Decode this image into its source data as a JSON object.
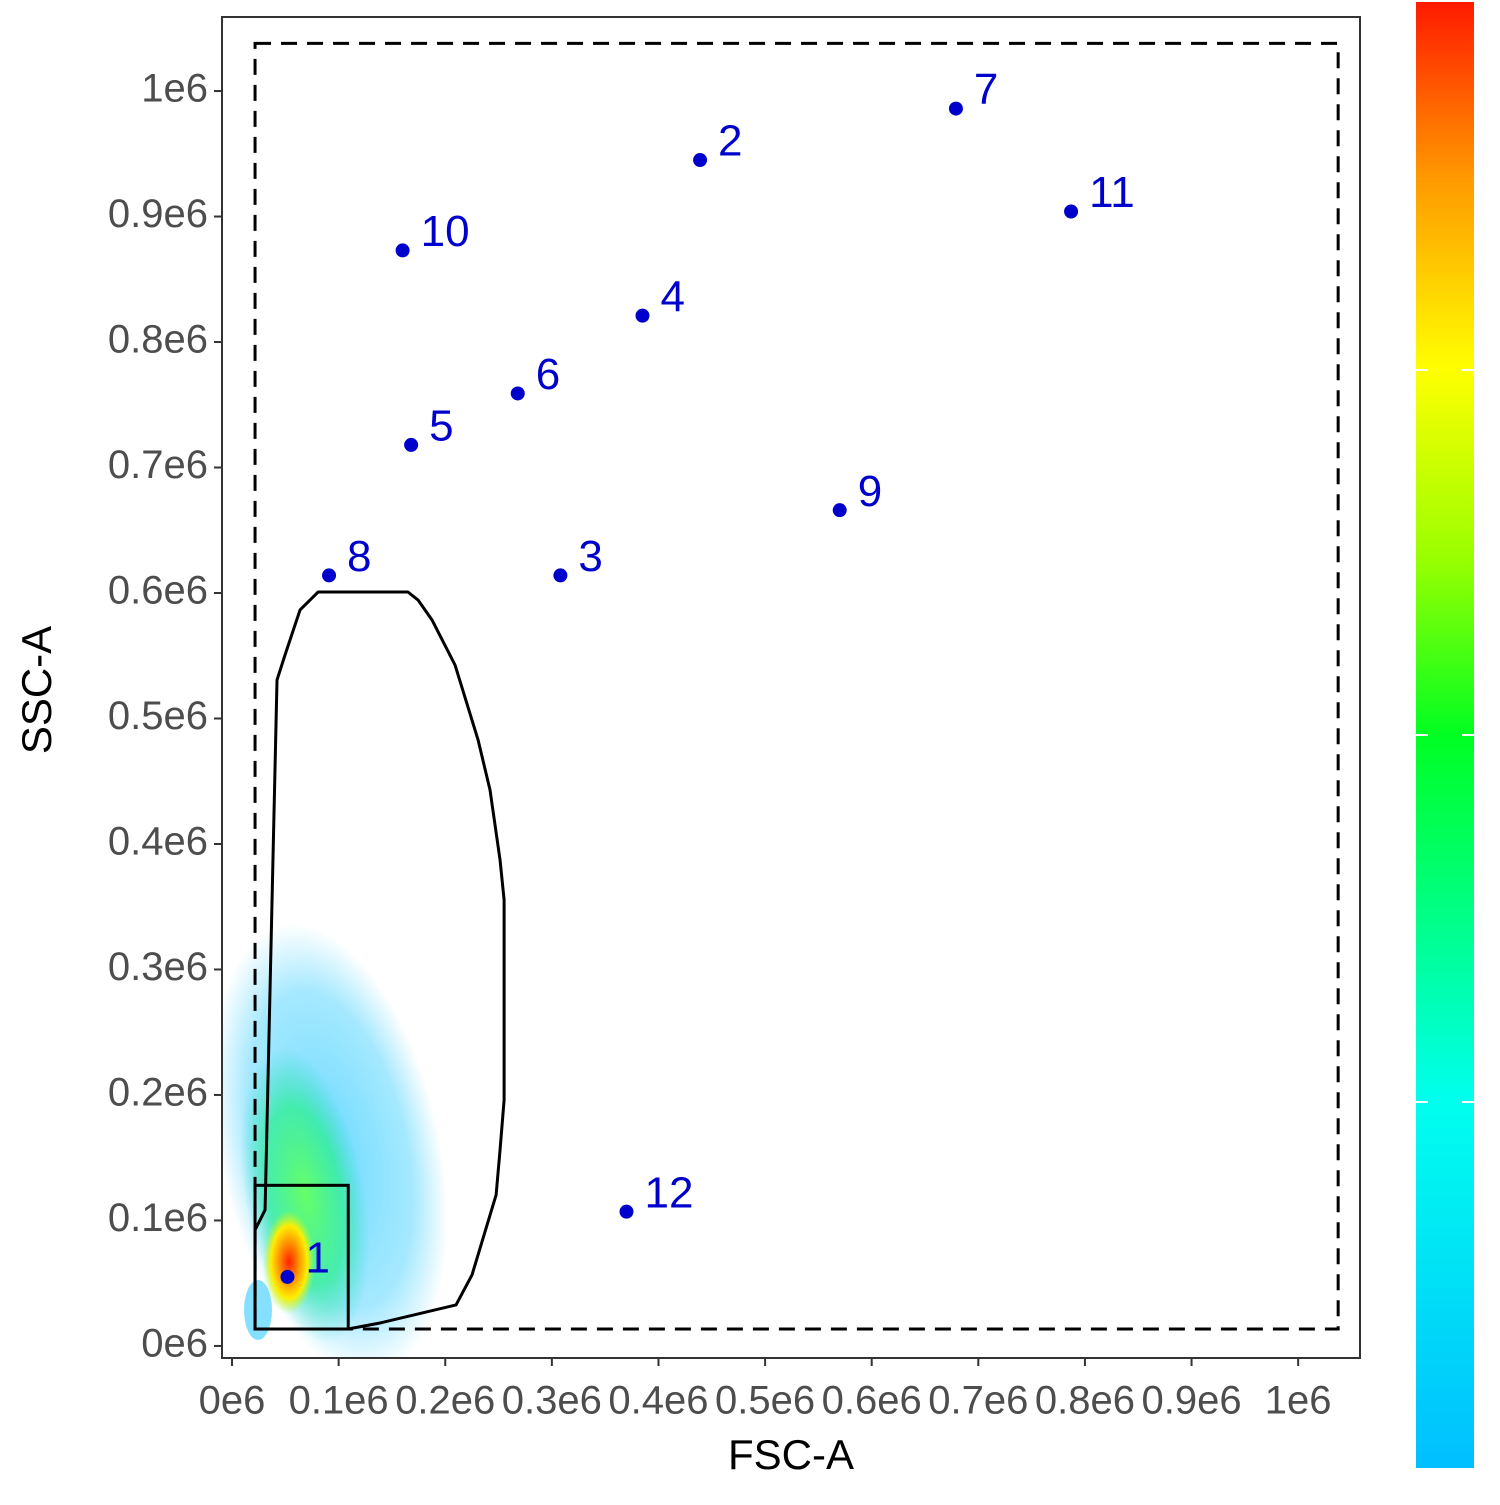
{
  "chart_data": {
    "type": "scatter",
    "x_label": "FSC-A",
    "y_label": "SSC-A",
    "xlim": [
      -9400,
      1058000
    ],
    "ylim": [
      -9600,
      1059000
    ],
    "xticks": [
      {
        "value": 0,
        "label": "0e6"
      },
      {
        "value": 100000,
        "label": "0.1e6"
      },
      {
        "value": 200000,
        "label": "0.2e6"
      },
      {
        "value": 300000,
        "label": "0.3e6"
      },
      {
        "value": 400000,
        "label": "0.4e6"
      },
      {
        "value": 500000,
        "label": "0.5e6"
      },
      {
        "value": 600000,
        "label": "0.6e6"
      },
      {
        "value": 700000,
        "label": "0.7e6"
      },
      {
        "value": 800000,
        "label": "0.8e6"
      },
      {
        "value": 900000,
        "label": "0.9e6"
      },
      {
        "value": 1000000,
        "label": "1e6"
      }
    ],
    "yticks": [
      {
        "value": 0,
        "label": "0e6"
      },
      {
        "value": 100000,
        "label": "0.1e6"
      },
      {
        "value": 200000,
        "label": "0.2e6"
      },
      {
        "value": 300000,
        "label": "0.3e6"
      },
      {
        "value": 400000,
        "label": "0.4e6"
      },
      {
        "value": 500000,
        "label": "0.5e6"
      },
      {
        "value": 600000,
        "label": "0.6e6"
      },
      {
        "value": 700000,
        "label": "0.7e6"
      },
      {
        "value": 800000,
        "label": "0.8e6"
      },
      {
        "value": 900000,
        "label": "0.9e6"
      },
      {
        "value": 1000000,
        "label": "1e6"
      }
    ],
    "grid": false,
    "series": [
      {
        "color": "#0000cc",
        "labels": [
          "1",
          "2",
          "3",
          "4",
          "5",
          "6",
          "7",
          "8",
          "9",
          "10",
          "11",
          "12"
        ],
        "x": [
          52000,
          439000,
          308000,
          385000,
          168000,
          268000,
          679000,
          91000,
          570000,
          160000,
          787000,
          370000
        ],
        "values": [
          55000,
          945000,
          614000,
          821000,
          718000,
          759000,
          986000,
          614000,
          666000,
          873000,
          904000,
          107000
        ]
      }
    ],
    "gates": [
      {
        "shape": "rectangle",
        "style": "dashed",
        "color": "#000000",
        "x": [
          21600,
          1037500
        ],
        "y": [
          13500,
          1038000
        ]
      },
      {
        "shape": "rectangle",
        "style": "solid",
        "color": "#000000",
        "x": [
          21600,
          109000
        ],
        "y": [
          13500,
          128000
        ]
      },
      {
        "shape": "polygon",
        "style": "solid",
        "color": "#000000",
        "x": [
          21600,
          21600,
          31000,
          42200,
          49700,
          63800,
          80700,
          165000,
          174500,
          187600,
          209200,
          230800,
          242000,
          251400,
          255200,
          255200,
          251400,
          247700,
          225100,
          210100,
          138800,
          108800
        ],
        "y": [
          13500,
          92400,
          108400,
          530700,
          550600,
          586500,
          600800,
          600800,
          594400,
          578500,
          542600,
          482900,
          443000,
          387300,
          355400,
          196000,
          156200,
          120300,
          56600,
          32700,
          18300,
          13500
        ]
      }
    ]
  }
}
